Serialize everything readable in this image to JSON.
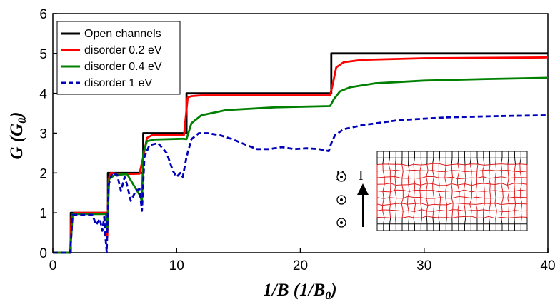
{
  "chart_data": {
    "type": "line",
    "title": "",
    "xlabel": "1/B (1/B",
    "xlabel_sub": "0",
    "xlabel_end": ")",
    "ylabel": "G (G",
    "ylabel_sub": "0",
    "ylabel_end": ")",
    "xlim": [
      0,
      40
    ],
    "ylim": [
      0,
      6
    ],
    "xticks": [
      0,
      10,
      20,
      30,
      40
    ],
    "yticks": [
      0,
      1,
      2,
      3,
      4,
      5,
      6
    ],
    "grid": false,
    "legend_position": "top-left",
    "series": [
      {
        "name": "Open channels",
        "color": "#000000",
        "dash": "solid",
        "x": [
          0,
          1.45,
          1.45,
          4.45,
          4.45,
          7.3,
          7.3,
          10.8,
          10.8,
          22.5,
          22.5,
          40
        ],
        "y": [
          0,
          0,
          1,
          1,
          2,
          2,
          3,
          3,
          4,
          4,
          5,
          5
        ]
      },
      {
        "name": "disorder 0.2 eV",
        "color": "#ff0000",
        "dash": "solid",
        "x": [
          0,
          1.4,
          1.5,
          1.7,
          4.3,
          4.4,
          4.5,
          4.7,
          5.5,
          7.0,
          7.3,
          7.6,
          8.0,
          10.6,
          10.9,
          11.2,
          12,
          22.4,
          22.6,
          22.9,
          23.5,
          25,
          30,
          40
        ],
        "y": [
          0,
          0,
          0.9,
          1.0,
          1.0,
          0.4,
          1.85,
          2.0,
          1.97,
          1.98,
          2.4,
          2.88,
          2.95,
          2.96,
          3.9,
          3.93,
          3.95,
          3.95,
          4.2,
          4.65,
          4.78,
          4.84,
          4.88,
          4.9
        ]
      },
      {
        "name": "disorder 0.4 eV",
        "color": "#008000",
        "dash": "solid",
        "x": [
          0,
          1.4,
          1.6,
          4.3,
          4.4,
          4.55,
          5.0,
          6.0,
          7.1,
          7.2,
          7.3,
          7.6,
          8.2,
          10.5,
          10.8,
          11.2,
          12,
          14,
          18,
          22.4,
          22.7,
          23.2,
          24,
          26,
          30,
          35,
          40
        ],
        "y": [
          0,
          0,
          0.97,
          0.97,
          0.55,
          1.85,
          1.95,
          1.97,
          1.4,
          1.25,
          2.5,
          2.8,
          2.84,
          2.86,
          2.85,
          3.25,
          3.45,
          3.58,
          3.65,
          3.68,
          3.85,
          4.05,
          4.15,
          4.25,
          4.32,
          4.36,
          4.39
        ]
      },
      {
        "name": "disorder 1 eV",
        "color": "#0000bb",
        "dash": "dashed",
        "x": [
          0,
          1.4,
          1.6,
          3.2,
          3.5,
          3.8,
          4.0,
          4.15,
          4.25,
          4.35,
          4.5,
          4.8,
          5.2,
          5.5,
          5.8,
          6.0,
          6.3,
          6.7,
          7.0,
          7.2,
          7.4,
          7.8,
          8.5,
          9.2,
          9.7,
          10.0,
          10.3,
          10.5,
          10.8,
          11.2,
          11.8,
          12.5,
          13.5,
          14.5,
          15.5,
          16.5,
          17.5,
          18.5,
          19.5,
          20.5,
          21.5,
          22.3,
          22.5,
          22.8,
          23.5,
          25,
          28,
          32,
          36,
          40
        ],
        "y": [
          0,
          0,
          0.95,
          0.95,
          0.7,
          0.85,
          0.55,
          0.9,
          0.4,
          0.02,
          1.7,
          2.0,
          1.95,
          1.55,
          1.9,
          1.7,
          1.3,
          1.55,
          1.6,
          1.05,
          2.4,
          2.7,
          2.75,
          2.5,
          2.05,
          1.9,
          2.0,
          1.9,
          2.4,
          2.85,
          3.0,
          3.0,
          2.95,
          2.85,
          2.72,
          2.6,
          2.6,
          2.65,
          2.6,
          2.62,
          2.6,
          2.55,
          2.75,
          2.95,
          3.1,
          3.2,
          3.33,
          3.4,
          3.43,
          3.45
        ]
      }
    ],
    "inset": {
      "field_label": "B",
      "current_label": "I",
      "field_symbol_count": 3
    }
  }
}
